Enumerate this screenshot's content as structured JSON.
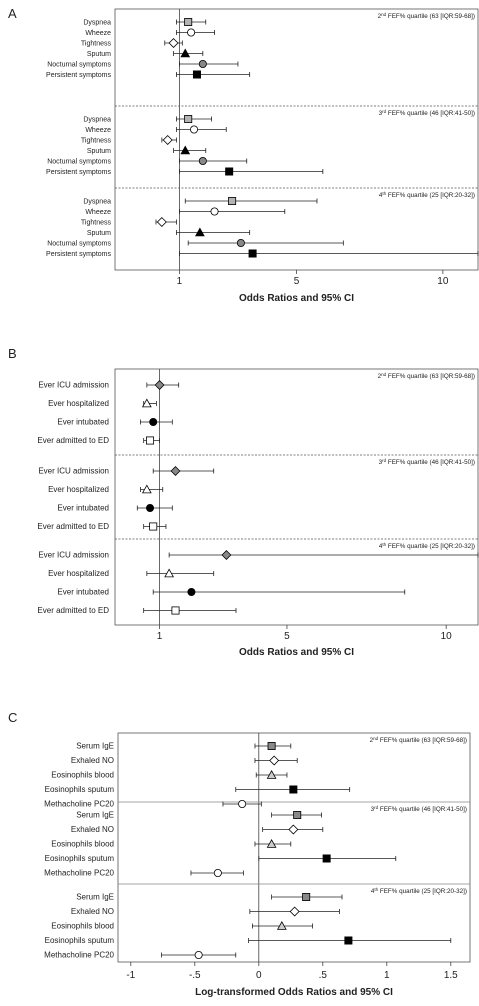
{
  "chart_data": [
    {
      "panel": "A",
      "type": "scatter",
      "xlabel": "Odds Ratios and 95% CI",
      "xlim": [
        -1.2,
        11.2
      ],
      "xticks": [
        {
          "v": 1,
          "label": "1"
        },
        {
          "v": 5,
          "label": "5"
        },
        {
          "v": 10,
          "label": "10"
        }
      ],
      "ref_line": 1,
      "groups": [
        {
          "label": "FEF% quartile (63 [IQR:59-68])",
          "ordinal": "2",
          "sup": "nd",
          "rows": [
            {
              "name": "Dyspnea",
              "or": 1.3,
              "lo": 0.9,
              "hi": 1.9,
              "marker": "square",
              "fill": "#b3b3b3"
            },
            {
              "name": "Wheeze",
              "or": 1.4,
              "lo": 0.9,
              "hi": 2.2,
              "marker": "circle",
              "fill": "#ffffff"
            },
            {
              "name": "Tightness",
              "or": 0.8,
              "lo": 0.5,
              "hi": 1.1,
              "marker": "diamond",
              "fill": "#ffffff"
            },
            {
              "name": "Sputum",
              "or": 1.2,
              "lo": 0.8,
              "hi": 1.8,
              "marker": "triangle",
              "fill": "#000000"
            },
            {
              "name": "Nocturnal symptoms",
              "or": 1.8,
              "lo": 1.0,
              "hi": 3.0,
              "marker": "circle",
              "fill": "#888888"
            },
            {
              "name": "Persistent symptoms",
              "or": 1.6,
              "lo": 0.9,
              "hi": 3.4,
              "marker": "square",
              "fill": "#000000"
            }
          ]
        },
        {
          "label": "FEF% quartile (46 [IQR:41-50])",
          "ordinal": "3",
          "sup": "rd",
          "rows": [
            {
              "name": "Dyspnea",
              "or": 1.3,
              "lo": 0.9,
              "hi": 2.1,
              "marker": "square",
              "fill": "#b3b3b3"
            },
            {
              "name": "Wheeze",
              "or": 1.5,
              "lo": 0.9,
              "hi": 2.6,
              "marker": "circle",
              "fill": "#ffffff"
            },
            {
              "name": "Tightness",
              "or": 0.6,
              "lo": 0.4,
              "hi": 0.9,
              "marker": "diamond",
              "fill": "#ffffff"
            },
            {
              "name": "Sputum",
              "or": 1.2,
              "lo": 0.8,
              "hi": 1.9,
              "marker": "triangle",
              "fill": "#000000"
            },
            {
              "name": "Nocturnal symptoms",
              "or": 1.8,
              "lo": 1.0,
              "hi": 3.3,
              "marker": "circle",
              "fill": "#888888"
            },
            {
              "name": "Persistent symptoms",
              "or": 2.7,
              "lo": 1.0,
              "hi": 5.9,
              "marker": "square",
              "fill": "#000000"
            }
          ]
        },
        {
          "label": "FEF% quartile (25 [IQR:20-32])",
          "ordinal": "4",
          "sup": "th",
          "rows": [
            {
              "name": "Dyspnea",
              "or": 2.8,
              "lo": 1.2,
              "hi": 5.7,
              "marker": "square",
              "fill": "#b3b3b3"
            },
            {
              "name": "Wheeze",
              "or": 2.2,
              "lo": 1.0,
              "hi": 4.6,
              "marker": "circle",
              "fill": "#ffffff"
            },
            {
              "name": "Tightness",
              "or": 0.4,
              "lo": 0.2,
              "hi": 0.9,
              "marker": "diamond",
              "fill": "#ffffff"
            },
            {
              "name": "Sputum",
              "or": 1.7,
              "lo": 0.9,
              "hi": 3.4,
              "marker": "triangle",
              "fill": "#000000"
            },
            {
              "name": "Nocturnal symptoms",
              "or": 3.1,
              "lo": 1.3,
              "hi": 6.6,
              "marker": "circle",
              "fill": "#888888"
            },
            {
              "name": "Persistent symptoms",
              "or": 3.5,
              "lo": 1.0,
              "hi": 11.2,
              "marker": "square",
              "fill": "#000000"
            }
          ]
        }
      ]
    },
    {
      "panel": "B",
      "type": "scatter",
      "xlabel": "Odds Ratios and 95% CI",
      "xlim": [
        -0.4,
        11.0
      ],
      "xticks": [
        {
          "v": 1,
          "label": "1"
        },
        {
          "v": 5,
          "label": "5"
        },
        {
          "v": 10,
          "label": "10"
        }
      ],
      "ref_line": 1,
      "groups": [
        {
          "label": "FEF% quartile (63 [IQR:59-68])",
          "ordinal": "2",
          "sup": "nd",
          "rows": [
            {
              "name": "Ever ICU admission",
              "or": 1.0,
              "lo": 0.6,
              "hi": 1.6,
              "marker": "diamond",
              "fill": "#888888"
            },
            {
              "name": "Ever hospitalized",
              "or": 0.6,
              "lo": 0.5,
              "hi": 0.9,
              "marker": "triangle",
              "fill": "#ffffff"
            },
            {
              "name": "Ever intubated",
              "or": 0.8,
              "lo": 0.4,
              "hi": 1.4,
              "marker": "circle",
              "fill": "#000000"
            },
            {
              "name": "Ever admitted to ED",
              "or": 0.7,
              "lo": 0.5,
              "hi": 1.0,
              "marker": "square",
              "fill": "#ffffff"
            }
          ]
        },
        {
          "label": "FEF% quartile (46 [IQR:41-50])",
          "ordinal": "3",
          "sup": "rd",
          "rows": [
            {
              "name": "Ever ICU admission",
              "or": 1.5,
              "lo": 0.8,
              "hi": 2.7,
              "marker": "diamond",
              "fill": "#888888"
            },
            {
              "name": "Ever hospitalized",
              "or": 0.6,
              "lo": 0.4,
              "hi": 1.1,
              "marker": "triangle",
              "fill": "#ffffff"
            },
            {
              "name": "Ever intubated",
              "or": 0.7,
              "lo": 0.3,
              "hi": 1.4,
              "marker": "circle",
              "fill": "#000000"
            },
            {
              "name": "Ever admitted to ED",
              "or": 0.8,
              "lo": 0.5,
              "hi": 1.2,
              "marker": "square",
              "fill": "#ffffff"
            }
          ]
        },
        {
          "label": "FEF% quartile (25 [IQR:20-32])",
          "ordinal": "4",
          "sup": "th",
          "rows": [
            {
              "name": "Ever ICU admission",
              "or": 3.1,
              "lo": 1.3,
              "hi": 11.0,
              "marker": "diamond",
              "fill": "#888888"
            },
            {
              "name": "Ever hospitalized",
              "or": 1.3,
              "lo": 0.6,
              "hi": 2.7,
              "marker": "triangle",
              "fill": "#ffffff"
            },
            {
              "name": "Ever intubated",
              "or": 2.0,
              "lo": 0.8,
              "hi": 8.7,
              "marker": "circle",
              "fill": "#000000"
            },
            {
              "name": "Ever admitted to ED",
              "or": 1.5,
              "lo": 0.5,
              "hi": 3.4,
              "marker": "square",
              "fill": "#ffffff"
            }
          ]
        }
      ]
    },
    {
      "panel": "C",
      "type": "scatter",
      "xlabel": "Log-transformed Odds Ratios and 95% CI",
      "xlim": [
        -1.1,
        1.65
      ],
      "xticks": [
        {
          "v": -1,
          "label": "-1"
        },
        {
          "v": -0.5,
          "label": "-.5"
        },
        {
          "v": 0,
          "label": "0"
        },
        {
          "v": 0.5,
          "label": ".5"
        },
        {
          "v": 1,
          "label": "1"
        },
        {
          "v": 1.5,
          "label": "1.5"
        }
      ],
      "ref_line": 0,
      "groups": [
        {
          "label": "FEF% quartile (63 [IQR:59-68])",
          "ordinal": "2",
          "sup": "nd",
          "rows": [
            {
              "name": "Serum IgE",
              "or": 0.1,
              "lo": -0.03,
              "hi": 0.25,
              "marker": "square",
              "fill": "#888888"
            },
            {
              "name": "Exhaled NO",
              "or": 0.12,
              "lo": -0.03,
              "hi": 0.3,
              "marker": "diamond",
              "fill": "#ffffff"
            },
            {
              "name": "Eosinophils blood",
              "or": 0.1,
              "lo": -0.02,
              "hi": 0.22,
              "marker": "triangle",
              "fill": "#cccccc"
            },
            {
              "name": "Eosinophils sputum",
              "or": 0.27,
              "lo": -0.18,
              "hi": 0.71,
              "marker": "square",
              "fill": "#000000"
            },
            {
              "name": "Methacholine PC20",
              "or": -0.13,
              "lo": -0.28,
              "hi": 0.02,
              "marker": "circle",
              "fill": "#ffffff"
            }
          ]
        },
        {
          "label": "FEF% quartile (46 [IQR:41-50])",
          "ordinal": "3",
          "sup": "rd",
          "rows": [
            {
              "name": "Serum IgE",
              "or": 0.3,
              "lo": 0.1,
              "hi": 0.49,
              "marker": "square",
              "fill": "#888888"
            },
            {
              "name": "Exhaled NO",
              "or": 0.27,
              "lo": 0.03,
              "hi": 0.5,
              "marker": "diamond",
              "fill": "#ffffff"
            },
            {
              "name": "Eosinophils blood",
              "or": 0.1,
              "lo": -0.03,
              "hi": 0.25,
              "marker": "triangle",
              "fill": "#cccccc"
            },
            {
              "name": "Eosinophils sputum",
              "or": 0.53,
              "lo": 0.0,
              "hi": 1.07,
              "marker": "square",
              "fill": "#000000"
            },
            {
              "name": "Methacholine PC20",
              "or": -0.32,
              "lo": -0.53,
              "hi": -0.12,
              "marker": "circle",
              "fill": "#ffffff"
            }
          ]
        },
        {
          "label": "FEF% quartile (25 [IQR:20-32])",
          "ordinal": "4",
          "sup": "th",
          "rows": [
            {
              "name": "Serum IgE",
              "or": 0.37,
              "lo": 0.1,
              "hi": 0.65,
              "marker": "square",
              "fill": "#888888"
            },
            {
              "name": "Exhaled NO",
              "or": 0.28,
              "lo": -0.07,
              "hi": 0.63,
              "marker": "diamond",
              "fill": "#ffffff"
            },
            {
              "name": "Eosinophils blood",
              "or": 0.18,
              "lo": -0.05,
              "hi": 0.42,
              "marker": "triangle",
              "fill": "#cccccc"
            },
            {
              "name": "Eosinophils sputum",
              "or": 0.7,
              "lo": -0.08,
              "hi": 1.5,
              "marker": "square",
              "fill": "#000000"
            },
            {
              "name": "Methacholine PC20",
              "or": -0.47,
              "lo": -0.76,
              "hi": -0.18,
              "marker": "circle",
              "fill": "#ffffff"
            }
          ]
        }
      ]
    }
  ]
}
